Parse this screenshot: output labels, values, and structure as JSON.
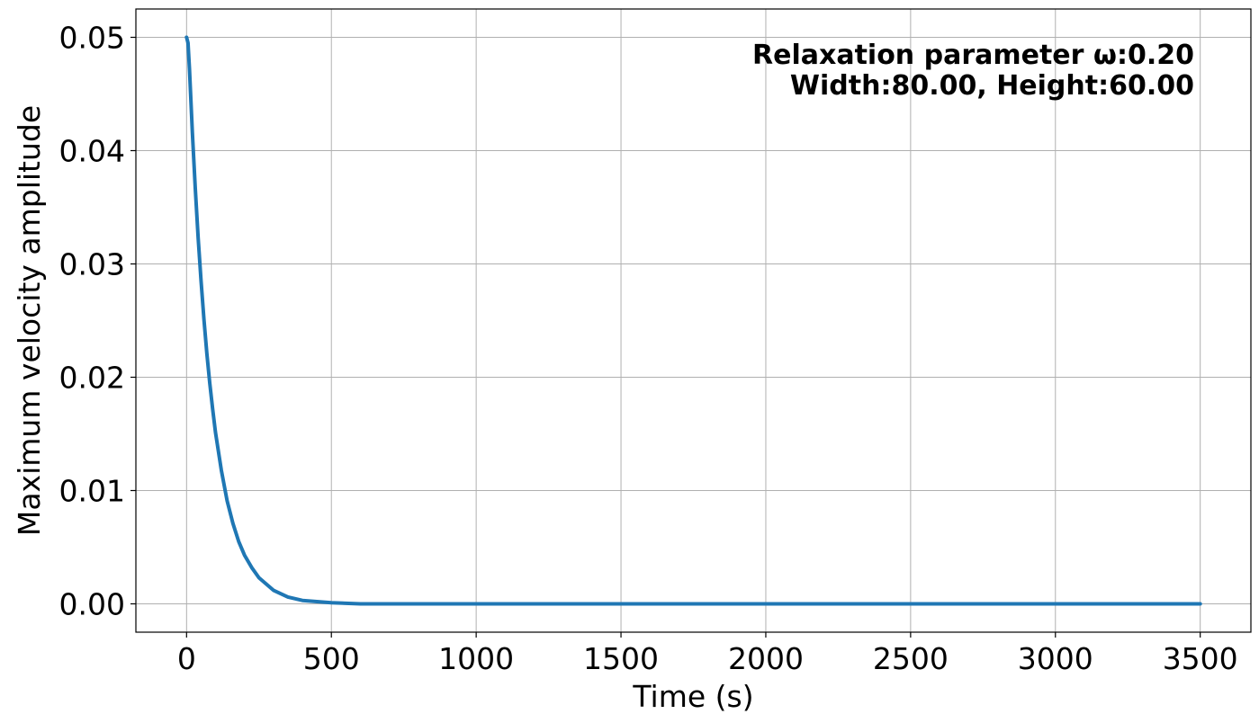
{
  "chart_data": {
    "type": "line",
    "title": "",
    "xlabel": "Time (s)",
    "ylabel": "Maximum velocity amplitude",
    "xlim": [
      -175,
      3675
    ],
    "ylim": [
      -0.0025,
      0.0525
    ],
    "xticks": [
      0,
      500,
      1000,
      1500,
      2000,
      2500,
      3000,
      3500
    ],
    "yticks": [
      0.0,
      0.01,
      0.02,
      0.03,
      0.04,
      0.05
    ],
    "xtick_labels": [
      "0",
      "500",
      "1000",
      "1500",
      "2000",
      "2500",
      "3000",
      "3500"
    ],
    "ytick_labels": [
      "0.00",
      "0.01",
      "0.02",
      "0.03",
      "0.04",
      "0.05"
    ],
    "grid": true,
    "annotations": [
      "Relaxation parameter ω:0.20",
      "Width:80.00, Height:60.00"
    ],
    "series": [
      {
        "color": "#1f77b4",
        "x": [
          0,
          5,
          10,
          20,
          30,
          40,
          50,
          60,
          70,
          80,
          90,
          100,
          120,
          140,
          160,
          180,
          200,
          225,
          250,
          300,
          350,
          400,
          450,
          500,
          600,
          800,
          1000,
          1500,
          2000,
          2500,
          3000,
          3500
        ],
        "y": [
          0.05,
          0.0495,
          0.0472,
          0.0416,
          0.0367,
          0.0323,
          0.0285,
          0.0251,
          0.0221,
          0.0195,
          0.0172,
          0.0151,
          0.0118,
          0.0091,
          0.0071,
          0.0055,
          0.0043,
          0.0032,
          0.0023,
          0.0012,
          0.0006,
          0.0003,
          0.0002,
          0.0001,
          0.0,
          0.0,
          0.0,
          0.0,
          0.0,
          0.0,
          0.0,
          0.0
        ]
      }
    ]
  }
}
